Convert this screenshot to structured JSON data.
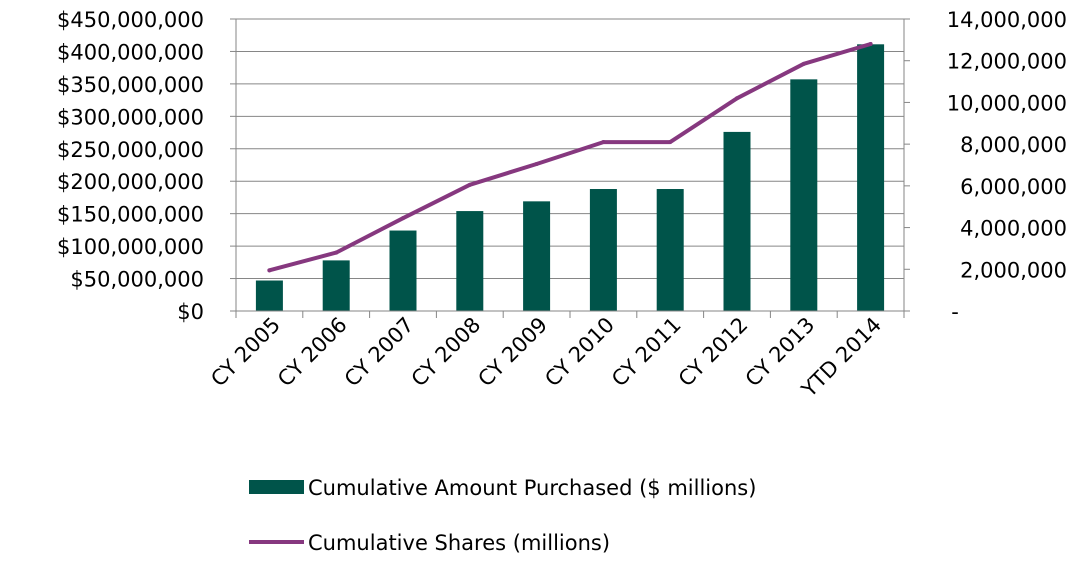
{
  "chart_data": {
    "type": "bar",
    "categories": [
      "CY 2005",
      "CY 2006",
      "CY 2007",
      "CY 2008",
      "CY 2009",
      "CY 2010",
      "CY 2011",
      "CY 2012",
      "CY 2013",
      "YTD 2014"
    ],
    "series": [
      {
        "name": "Cumulative Amount Purchased ($ millions)",
        "type": "bar",
        "axis": "left",
        "values": [
          47000000,
          78000000,
          124000000,
          154000000,
          169000000,
          188000000,
          188000000,
          276000000,
          357000000,
          411000000
        ]
      },
      {
        "name": "Cumulative Shares (millions)",
        "type": "line",
        "axis": "right",
        "values": [
          1950000,
          2800000,
          4450000,
          6050000,
          7050000,
          8100000,
          8100000,
          10200000,
          11850000,
          12800000
        ]
      }
    ],
    "y_left": {
      "ylim": [
        0,
        450000000
      ],
      "ticks": [
        0,
        50000000,
        100000000,
        150000000,
        200000000,
        250000000,
        300000000,
        350000000,
        400000000,
        450000000
      ],
      "tick_labels": [
        "$0",
        "$50,000,000",
        "$100,000,000",
        "$150,000,000",
        "$200,000,000",
        "$250,000,000",
        "$300,000,000",
        "$350,000,000",
        "$400,000,000",
        "$450,000,000"
      ]
    },
    "y_right": {
      "ylim": [
        0,
        14000000
      ],
      "ticks": [
        0,
        2000000,
        4000000,
        6000000,
        8000000,
        10000000,
        12000000,
        14000000
      ],
      "tick_labels": [
        "-",
        "2,000,000",
        "4,000,000",
        "6,000,000",
        "8,000,000",
        "10,000,000",
        "12,000,000",
        "14,000,000"
      ]
    },
    "grid": true,
    "legend_position": "bottom",
    "colors": {
      "bar": "#00544a",
      "line": "#86387f",
      "grid": "#868686",
      "axis": "#868686"
    }
  }
}
